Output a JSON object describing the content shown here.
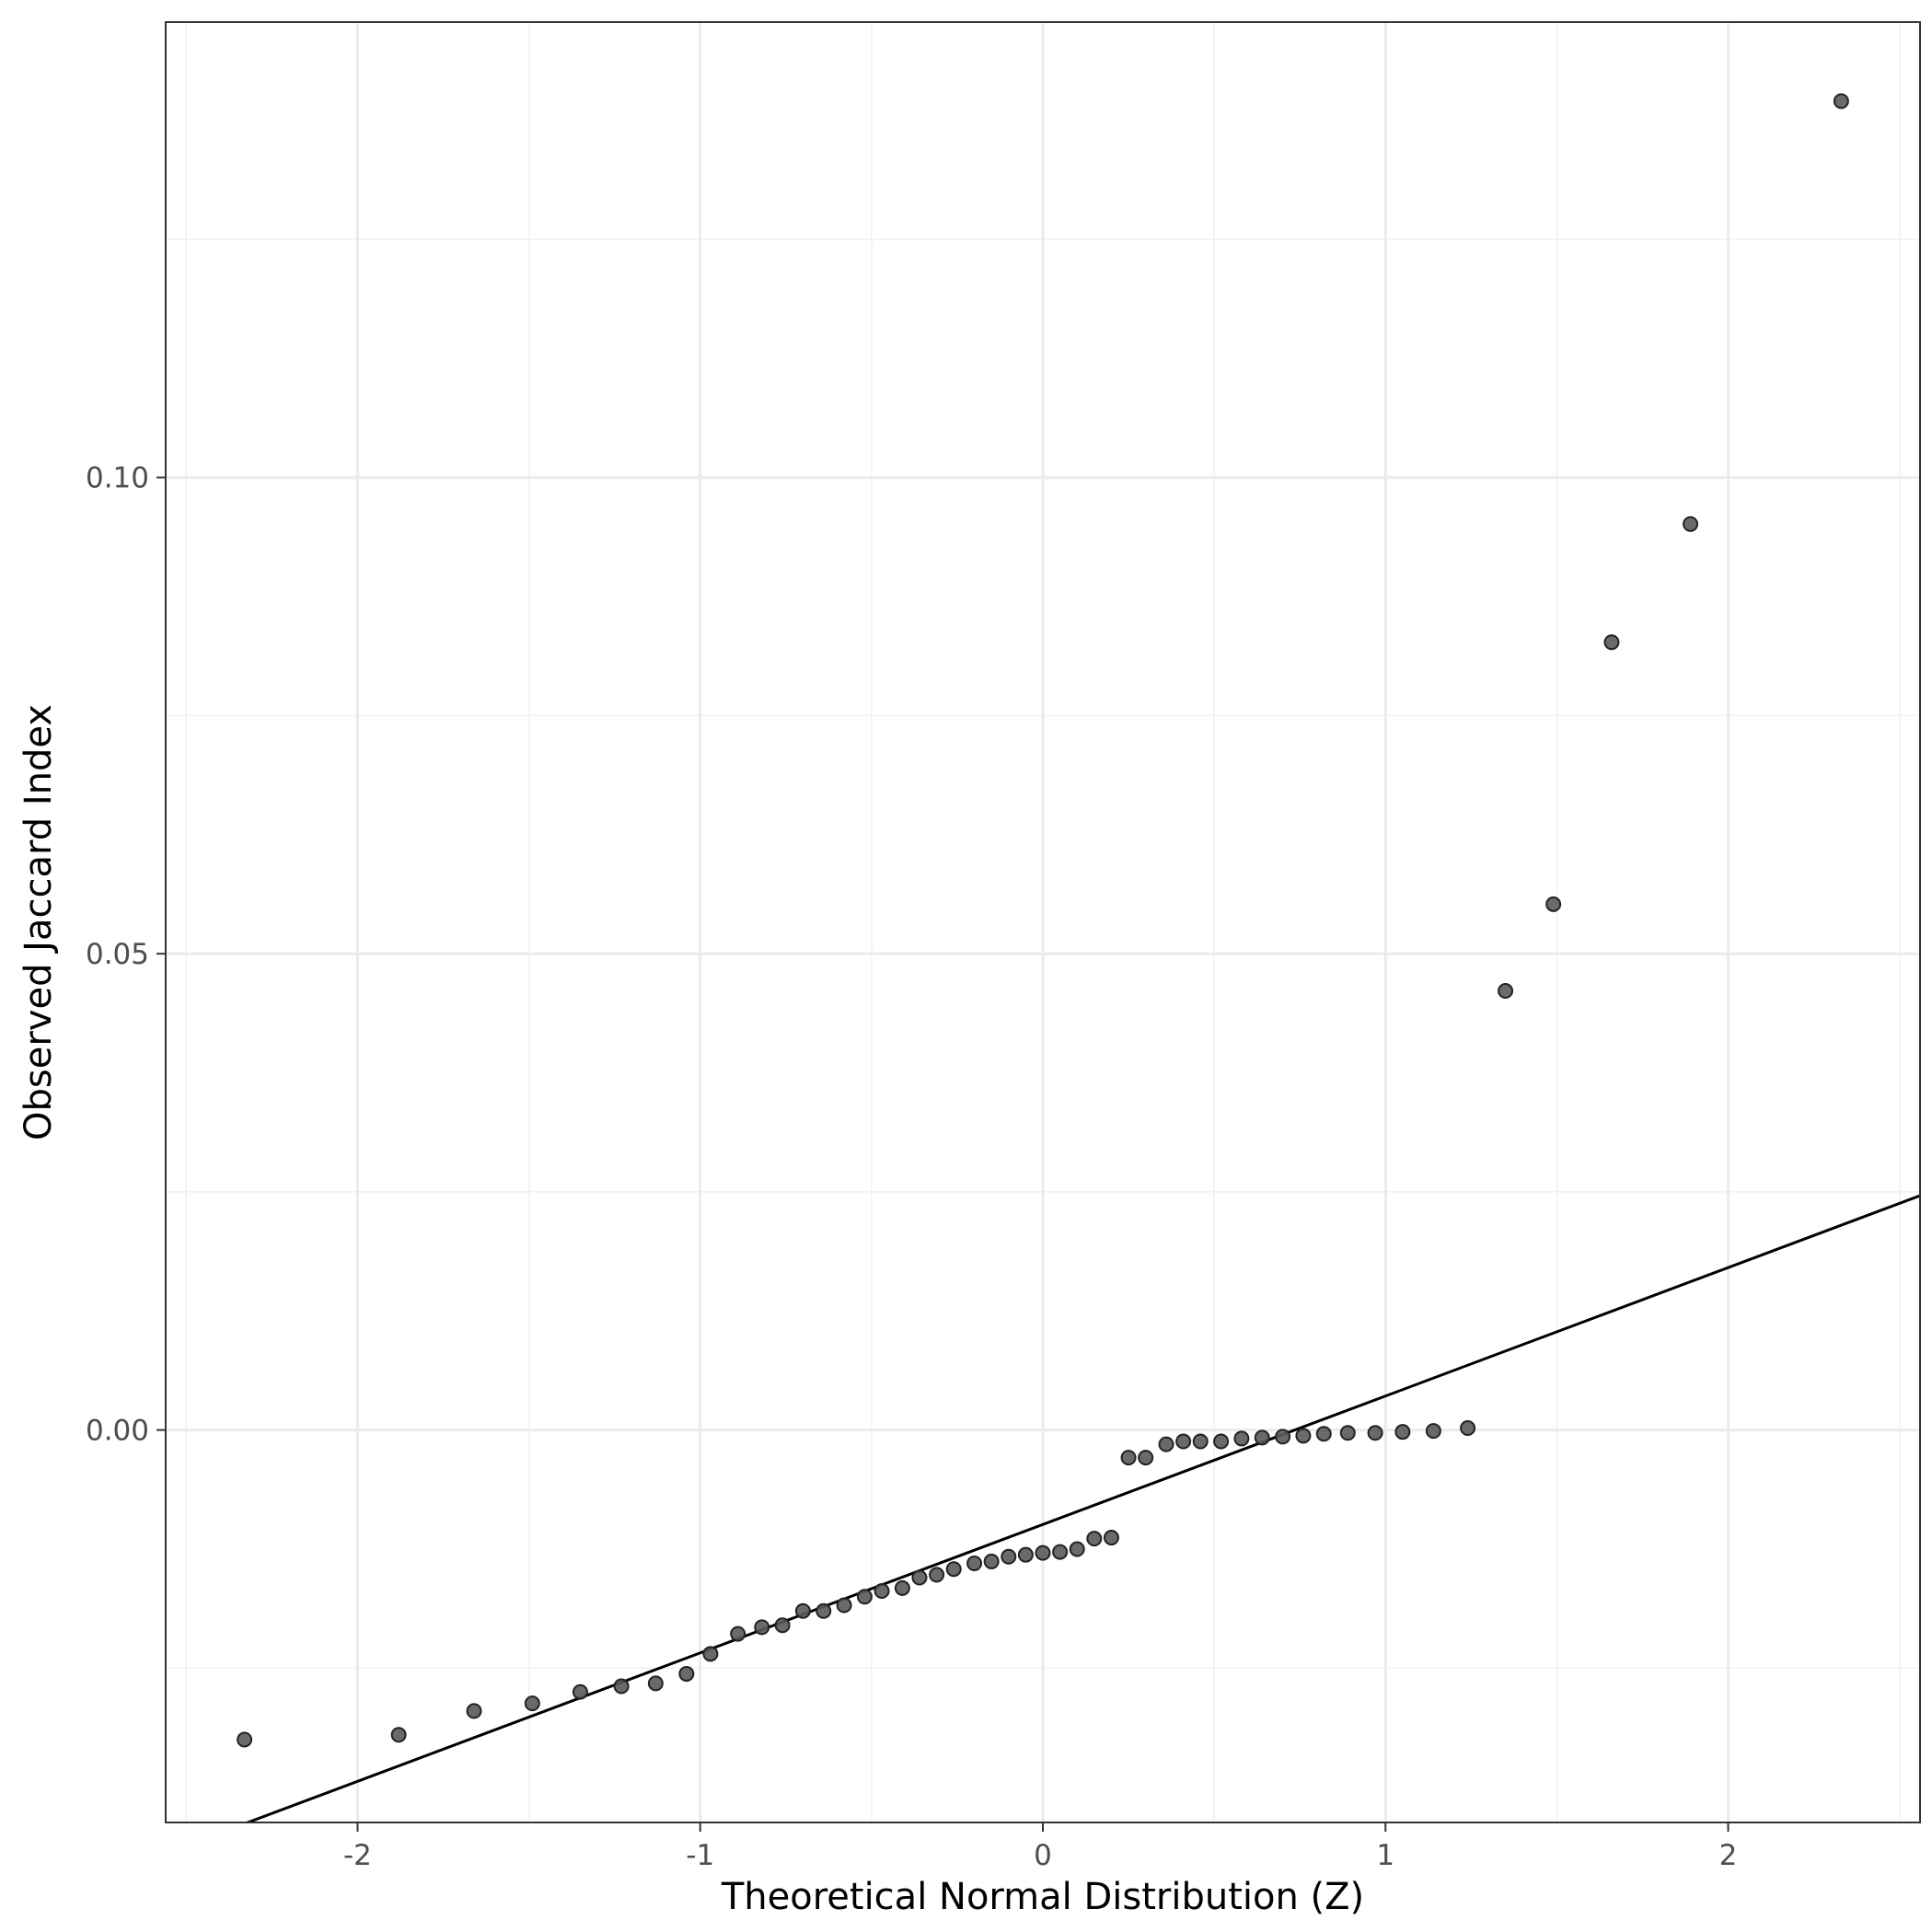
{
  "chart_data": {
    "type": "scatter",
    "title": "",
    "xlabel": "Theoretical Normal Distribution (Z)",
    "ylabel": "Observed Jaccard Index",
    "xlim": [
      -2.56,
      2.56
    ],
    "ylim": [
      -0.0412,
      0.1478
    ],
    "x_ticks": [
      -2,
      -1,
      0,
      1,
      2
    ],
    "x_tick_labels": [
      "-2",
      "-1",
      "0",
      "1",
      "2"
    ],
    "y_ticks": [
      0.0,
      0.05,
      0.1
    ],
    "y_tick_labels": [
      "0.00",
      "0.05",
      "0.10"
    ],
    "grid": true,
    "point_color": "#5a5a5a",
    "line_color": "#000000",
    "reference_line": {
      "x": [
        -2.35,
        2.56
      ],
      "y": [
        -0.0416,
        0.0246
      ]
    },
    "series": [
      {
        "x": [
          -2.33,
          -1.88,
          -1.66,
          -1.49,
          -1.35,
          -1.23,
          -1.13,
          -1.04,
          -0.97,
          -0.89,
          -0.82,
          -0.76,
          -0.7,
          -0.64,
          -0.58,
          -0.52,
          -0.47,
          -0.41,
          -0.36,
          -0.31,
          -0.26,
          -0.2,
          -0.15,
          -0.1,
          -0.05,
          0.0,
          0.05,
          0.1,
          0.15,
          0.2,
          0.25,
          0.3,
          0.36,
          0.41,
          0.46,
          0.52,
          0.58,
          0.64,
          0.7,
          0.76,
          0.82,
          0.89,
          0.97,
          1.05,
          1.14,
          1.24,
          1.35,
          1.49,
          1.66,
          1.89,
          2.33
        ],
        "y": [
          -0.0325,
          -0.032,
          -0.0295,
          -0.0287,
          -0.0275,
          -0.0269,
          -0.0266,
          -0.0256,
          -0.0235,
          -0.0214,
          -0.0207,
          -0.0205,
          -0.019,
          -0.019,
          -0.0184,
          -0.0175,
          -0.0169,
          -0.0166,
          -0.0155,
          -0.0152,
          -0.0146,
          -0.014,
          -0.0138,
          -0.0133,
          -0.0131,
          -0.0129,
          -0.0128,
          -0.0125,
          -0.0114,
          -0.0113,
          -0.0029,
          -0.0029,
          -0.0015,
          -0.0012,
          -0.0012,
          -0.0012,
          -0.0009,
          -0.0008,
          -0.0007,
          -0.0006,
          -0.0004,
          -0.0003,
          -0.0003,
          -0.0002,
          -0.0001,
          0.0002,
          0.0461,
          0.0552,
          0.0827,
          0.0951,
          0.1395
        ]
      }
    ]
  }
}
